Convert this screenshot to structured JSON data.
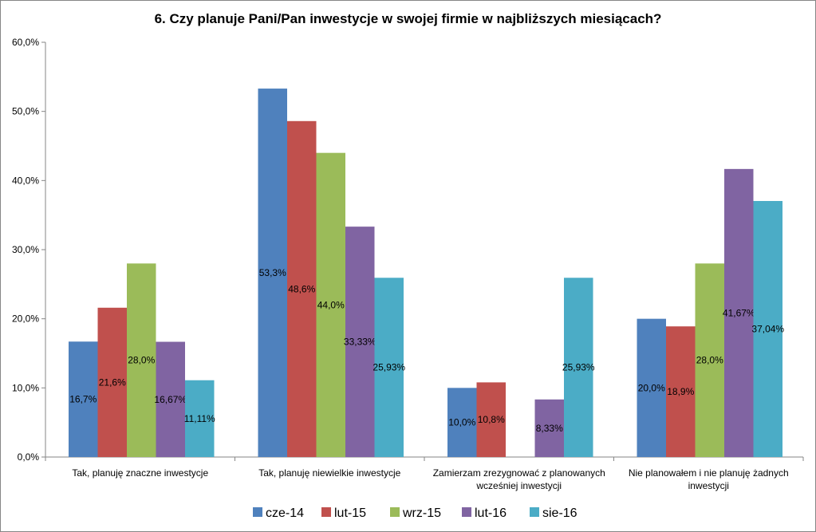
{
  "chart_data": {
    "type": "bar",
    "title": "6. Czy planuje Pani/Pan  inwestycje w swojej firmie w najbliższych miesiącach?",
    "xlabel": "",
    "ylabel": "",
    "ylim": [
      0,
      60
    ],
    "yticks": [
      "0,0%",
      "10,0%",
      "20,0%",
      "30,0%",
      "40,0%",
      "50,0%",
      "60,0%"
    ],
    "categories": [
      [
        "Tak, planuję znaczne inwestycje"
      ],
      [
        "Tak, planuję niewielkie inwestycje"
      ],
      [
        "Zamierzam zrezygnować z planowanych",
        "wcześniej inwestycji"
      ],
      [
        "Nie planowałem i nie planuję żadnych",
        "inwestycji"
      ]
    ],
    "series": [
      {
        "name": "cze-14",
        "color": "#4F81BD",
        "values": [
          16.7,
          53.3,
          10.0,
          20.0
        ],
        "labels": [
          "16,7%",
          "53,3%",
          "10,0%",
          "20,0%"
        ]
      },
      {
        "name": "lut-15",
        "color": "#C0504D",
        "values": [
          21.6,
          48.6,
          10.8,
          18.9
        ],
        "labels": [
          "21,6%",
          "48,6%",
          "10,8%",
          "18,9%"
        ]
      },
      {
        "name": "wrz-15",
        "color": "#9BBB59",
        "values": [
          28.0,
          44.0,
          0,
          28.0
        ],
        "labels": [
          "28,0%",
          "44,0%",
          "",
          "28,0%"
        ]
      },
      {
        "name": "lut-16",
        "color": "#8064A2",
        "values": [
          16.67,
          33.33,
          8.33,
          41.67
        ],
        "labels": [
          "16,67%",
          "33,33%",
          "8,33%",
          "41,67%"
        ]
      },
      {
        "name": "sie-16",
        "color": "#4BACC6",
        "values": [
          11.11,
          25.93,
          25.93,
          37.04
        ],
        "labels": [
          "11,11%",
          "25,93%",
          "25,93%",
          "37,04%"
        ]
      }
    ],
    "legend_position": "bottom",
    "grid": false
  }
}
